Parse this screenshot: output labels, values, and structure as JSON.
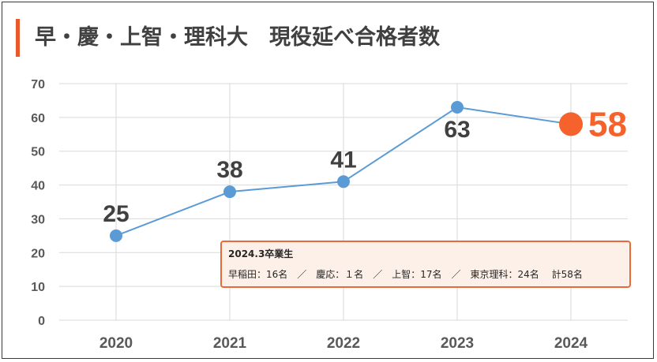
{
  "header": {
    "title": "早・慶・上智・理科大　現役延べ合格者数"
  },
  "chart_data": {
    "type": "line",
    "title": "早・慶・上智・理科大　現役延べ合格者数",
    "categories": [
      "2020",
      "2021",
      "2022",
      "2023",
      "2024"
    ],
    "series": [
      {
        "values": [
          25,
          38,
          41,
          63,
          58
        ]
      }
    ],
    "ylim": [
      0,
      70
    ],
    "yticks": [
      0,
      10,
      20,
      30,
      40,
      50,
      60,
      70
    ],
    "grid": true,
    "colors": {
      "line": "#5b9bd5",
      "highlight": "#f5622c",
      "grid": "#d9d9d9",
      "axis_text": "#595959",
      "label_text": "#404040"
    }
  },
  "note": {
    "title": "2024.3卒業生",
    "body": "早稲田：16名　／　慶応：１名　／　上智：17名　／　東京理科：24名　 計58名"
  }
}
